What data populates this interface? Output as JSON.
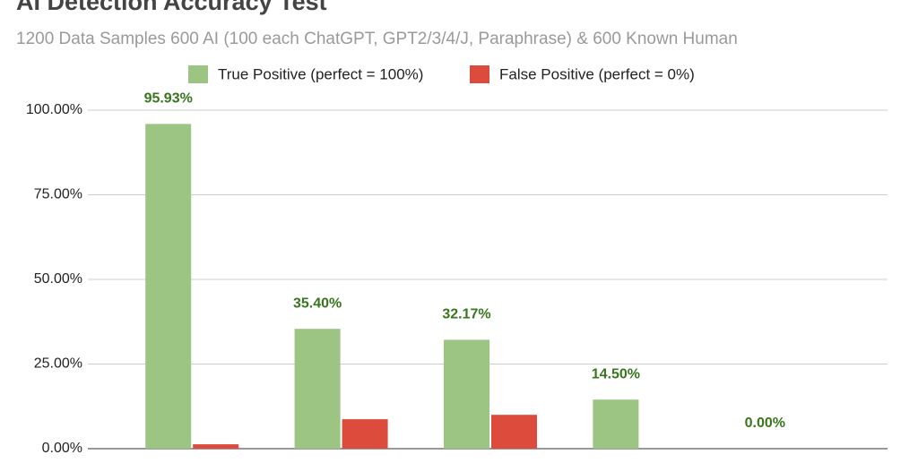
{
  "chart_data": {
    "type": "bar",
    "title": "AI Detection Accuracy Test",
    "subtitle": "1200 Data Samples 600 AI (100 each ChatGPT, GPT2/3/4/J, Paraphrase) & 600 Known Human",
    "categories": [
      null,
      null,
      null,
      null,
      null
    ],
    "series": [
      {
        "name": "True Positive (perfect = 100%)",
        "color": "#9cc584",
        "values": [
          95.93,
          35.4,
          32.17,
          14.5,
          0.0
        ],
        "value_labels": [
          "95.93%",
          "35.40%",
          "32.17%",
          "14.50%",
          "0.00%"
        ]
      },
      {
        "name": "False Positive (perfect = 0%)",
        "color": "#dc4b3c",
        "values": [
          1.3,
          8.7,
          10.0,
          0,
          0
        ]
      }
    ],
    "ylim": [
      0,
      100
    ],
    "yticks": [
      {
        "value": 0,
        "label": "0.00%"
      },
      {
        "value": 25,
        "label": "25.00%"
      },
      {
        "value": 50,
        "label": "50.00%"
      },
      {
        "value": 75,
        "label": "75.00%"
      },
      {
        "value": 100,
        "label": "100.00%"
      }
    ],
    "grid": true,
    "legend": "top"
  }
}
